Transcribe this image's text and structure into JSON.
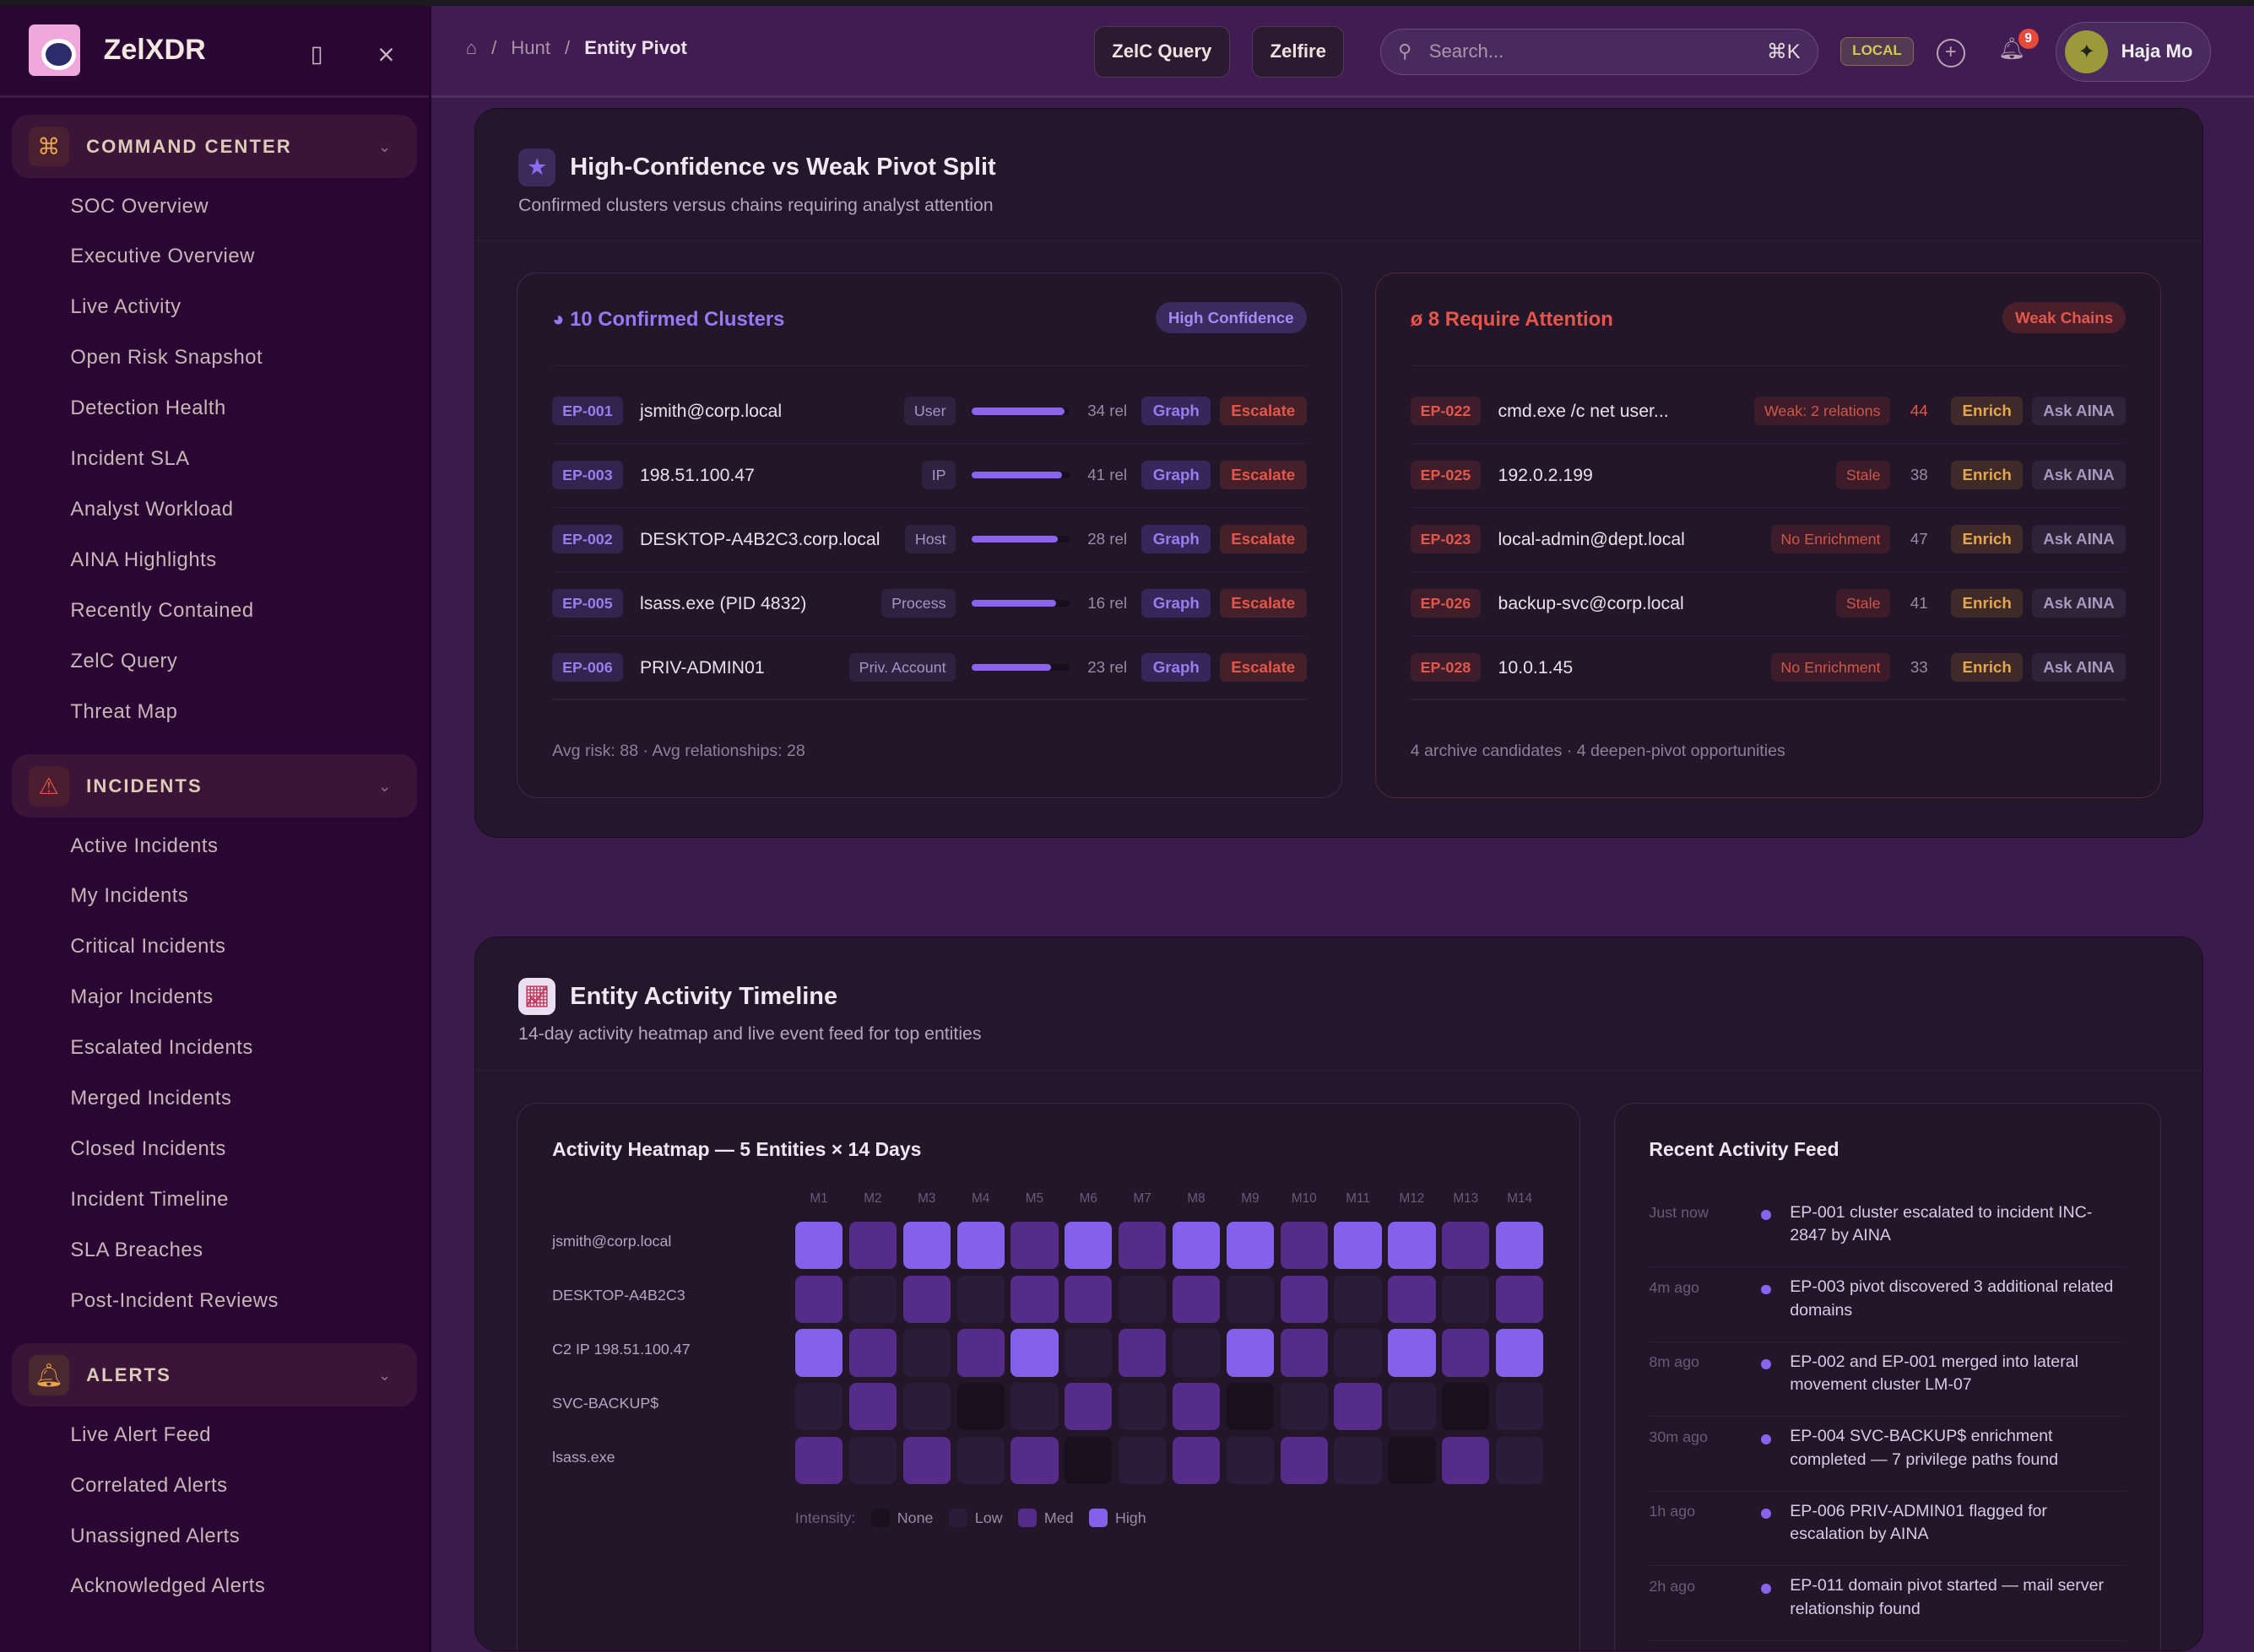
{
  "app": {
    "name": "ZelXDR"
  },
  "sidebar": {
    "groups": [
      {
        "label": "COMMAND CENTER",
        "icon": "command-icon",
        "items": [
          "SOC Overview",
          "Executive Overview",
          "Live Activity",
          "Open Risk Snapshot",
          "Detection Health",
          "Incident SLA",
          "Analyst Workload",
          "AINA Highlights",
          "Recently Contained",
          "ZelC Query",
          "Threat Map"
        ]
      },
      {
        "label": "INCIDENTS",
        "icon": "warning-icon",
        "items": [
          "Active Incidents",
          "My Incidents",
          "Critical Incidents",
          "Major Incidents",
          "Escalated Incidents",
          "Merged Incidents",
          "Closed Incidents",
          "Incident Timeline",
          "SLA Breaches",
          "Post-Incident Reviews"
        ]
      },
      {
        "label": "ALERTS",
        "icon": "bell-icon",
        "items": [
          "Live Alert Feed",
          "Correlated Alerts",
          "Unassigned Alerts",
          "Acknowledged Alerts"
        ]
      }
    ]
  },
  "header": {
    "breadcrumb": [
      "Hunt",
      "Entity Pivot"
    ],
    "zelc_query": "ZelC Query",
    "zelfire": "Zelfire",
    "search_placeholder": "Search...",
    "shortcut": "⌘K",
    "env": "LOCAL",
    "notifications": "9",
    "user": "Haja Mo"
  },
  "split": {
    "title": "High-Confidence vs Weak Pivot Split",
    "subtitle": "Confirmed clusters versus chains requiring analyst attention",
    "confirmed": {
      "title": "10 Confirmed Clusters",
      "pill": "High Confidence",
      "footer": "Avg risk: 88 · Avg relationships: 28",
      "graph": "Graph",
      "escalate": "Escalate",
      "rows": [
        {
          "id": "EP-001",
          "name": "jsmith@corp.local",
          "type": "User",
          "strength": 0.95,
          "rel": "34 rel"
        },
        {
          "id": "EP-003",
          "name": "198.51.100.47",
          "type": "IP",
          "strength": 0.92,
          "rel": "41 rel"
        },
        {
          "id": "EP-002",
          "name": "DESKTOP-A4B2C3.corp.local",
          "type": "Host",
          "strength": 0.88,
          "rel": "28 rel"
        },
        {
          "id": "EP-005",
          "name": "lsass.exe (PID 4832)",
          "type": "Process",
          "strength": 0.86,
          "rel": "16 rel"
        },
        {
          "id": "EP-006",
          "name": "PRIV-ADMIN01",
          "type": "Priv. Account",
          "strength": 0.81,
          "rel": "23 rel"
        }
      ]
    },
    "weak": {
      "title": "8 Require Attention",
      "pill": "Weak Chains",
      "footer": "4 archive candidates · 4 deepen-pivot opportunities",
      "enrich": "Enrich",
      "ask": "Ask AINA",
      "rows": [
        {
          "id": "EP-022",
          "name": "cmd.exe /c net user...",
          "tag": "Weak: 2 relations",
          "score": "44"
        },
        {
          "id": "EP-025",
          "name": "192.0.2.199",
          "tag": "Stale",
          "score": "38"
        },
        {
          "id": "EP-023",
          "name": "local-admin@dept.local",
          "tag": "No Enrichment",
          "score": "47"
        },
        {
          "id": "EP-026",
          "name": "backup-svc@corp.local",
          "tag": "Stale",
          "score": "41"
        },
        {
          "id": "EP-028",
          "name": "10.0.1.45",
          "tag": "No Enrichment",
          "score": "33"
        }
      ]
    }
  },
  "timeline": {
    "title": "Entity Activity Timeline",
    "subtitle": "14-day activity heatmap and live event feed for top entities",
    "feed_title": "Recent Activity Feed",
    "feed": [
      {
        "time": "Just now",
        "text": "EP-001 cluster escalated to incident INC-2847 by AINA"
      },
      {
        "time": "4m ago",
        "text": "EP-003 pivot discovered 3 additional related domains"
      },
      {
        "time": "8m ago",
        "text": "EP-002 and EP-001 merged into lateral movement cluster LM-07"
      },
      {
        "time": "30m ago",
        "text": "EP-004 SVC-BACKUP$ enrichment completed — 7 privilege paths found"
      },
      {
        "time": "1h ago",
        "text": "EP-006 PRIV-ADMIN01 flagged for escalation by AINA"
      },
      {
        "time": "2h ago",
        "text": "EP-011 domain pivot started — mail server relationship found"
      }
    ]
  },
  "chart_data": {
    "type": "heatmap",
    "title": "Activity Heatmap — 5 Entities × 14 Days",
    "x": [
      "M1",
      "M2",
      "M3",
      "M4",
      "M5",
      "M6",
      "M7",
      "M8",
      "M9",
      "M10",
      "M11",
      "M12",
      "M13",
      "M14"
    ],
    "y": [
      "jsmith@corp.local",
      "DESKTOP-A4B2C3",
      "C2 IP 198.51.100.47",
      "SVC-BACKUP$",
      "lsass.exe"
    ],
    "scale": [
      "None",
      "Low",
      "Med",
      "High"
    ],
    "legend_label": "Intensity:",
    "values": [
      [
        3,
        2,
        3,
        3,
        2,
        3,
        2,
        3,
        3,
        2,
        3,
        3,
        2,
        3
      ],
      [
        2,
        1,
        2,
        1,
        2,
        2,
        1,
        2,
        1,
        2,
        1,
        2,
        1,
        2
      ],
      [
        3,
        2,
        1,
        2,
        3,
        1,
        2,
        1,
        3,
        2,
        1,
        3,
        2,
        3
      ],
      [
        1,
        2,
        1,
        0,
        1,
        2,
        1,
        2,
        0,
        1,
        2,
        1,
        0,
        1
      ],
      [
        2,
        1,
        2,
        1,
        2,
        0,
        1,
        2,
        1,
        2,
        1,
        0,
        2,
        1
      ]
    ],
    "colors": [
      "#1a0f1c",
      "#2a1c3a",
      "#552c8a",
      "#8560ea"
    ]
  },
  "colors": {
    "accent": "#8a64ee",
    "danger": "#e5564a",
    "warning": "#e8a54a"
  }
}
